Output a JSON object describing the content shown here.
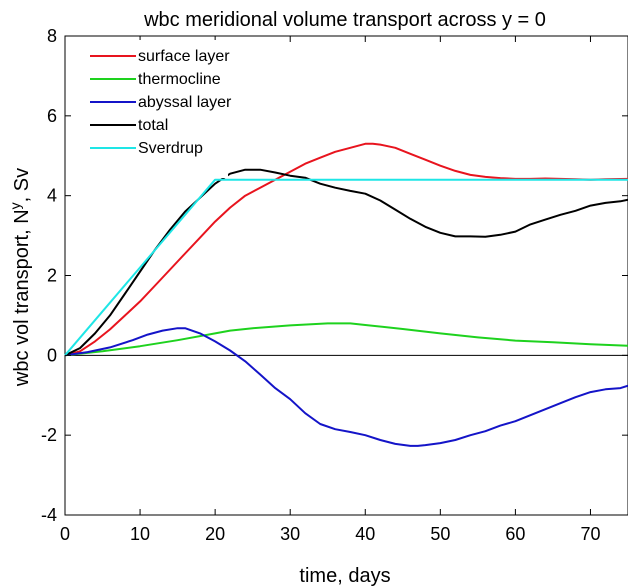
{
  "chart_data": {
    "type": "line",
    "title": "wbc meridional  volume transport across y = 0",
    "xlabel": "time, days",
    "ylabel": "wbc vol transport, N",
    "ylabel_superscript": "y",
    "ylabel_suffix": ", Sv",
    "xlim": [
      0,
      75
    ],
    "ylim": [
      -4,
      8
    ],
    "xticks": [
      0,
      10,
      20,
      30,
      40,
      50,
      60,
      70
    ],
    "yticks": [
      -4,
      -2,
      0,
      2,
      4,
      6,
      8
    ],
    "legend_position": "top-left",
    "zero_line": true,
    "grid": false,
    "series": [
      {
        "name": "surface layer",
        "color": "#e8141e",
        "x": [
          0,
          2,
          4,
          6,
          8,
          10,
          12,
          14,
          16,
          18,
          20,
          22,
          24,
          26,
          28,
          30,
          32,
          34,
          36,
          38,
          40,
          41,
          42,
          44,
          46,
          48,
          50,
          52,
          54,
          56,
          58,
          60,
          62,
          64,
          66,
          68,
          70,
          72,
          75
        ],
        "y": [
          0,
          0.1,
          0.35,
          0.65,
          1.0,
          1.35,
          1.75,
          2.15,
          2.55,
          2.95,
          3.35,
          3.7,
          4.0,
          4.2,
          4.4,
          4.6,
          4.8,
          4.95,
          5.1,
          5.2,
          5.3,
          5.3,
          5.28,
          5.2,
          5.05,
          4.9,
          4.75,
          4.62,
          4.52,
          4.47,
          4.44,
          4.42,
          4.42,
          4.43,
          4.42,
          4.41,
          4.4,
          4.41,
          4.42
        ]
      },
      {
        "name": "thermocline",
        "color": "#1ed21e",
        "x": [
          0,
          5,
          10,
          15,
          20,
          22,
          25,
          30,
          35,
          38,
          40,
          45,
          50,
          55,
          60,
          65,
          70,
          75
        ],
        "y": [
          0,
          0.1,
          0.23,
          0.38,
          0.55,
          0.62,
          0.68,
          0.75,
          0.8,
          0.8,
          0.76,
          0.66,
          0.55,
          0.45,
          0.37,
          0.33,
          0.28,
          0.24
        ]
      },
      {
        "name": "abyssal layer",
        "color": "#1414c8",
        "x": [
          0,
          3,
          6,
          9,
          11,
          13,
          15,
          16,
          18,
          20,
          22,
          24,
          26,
          28,
          30,
          32,
          34,
          36,
          38,
          40,
          42,
          44,
          46,
          47,
          48,
          50,
          52,
          54,
          56,
          58,
          60,
          62,
          64,
          66,
          68,
          70,
          72,
          74,
          75
        ],
        "y": [
          0,
          0.08,
          0.2,
          0.38,
          0.52,
          0.62,
          0.68,
          0.68,
          0.55,
          0.35,
          0.12,
          -0.15,
          -0.48,
          -0.82,
          -1.1,
          -1.45,
          -1.72,
          -1.85,
          -1.92,
          -2.0,
          -2.12,
          -2.22,
          -2.27,
          -2.27,
          -2.25,
          -2.2,
          -2.12,
          -2.0,
          -1.9,
          -1.76,
          -1.65,
          -1.5,
          -1.35,
          -1.2,
          -1.05,
          -0.92,
          -0.85,
          -0.82,
          -0.76
        ]
      },
      {
        "name": "total",
        "color": "#000000",
        "x": [
          0,
          2,
          4,
          6,
          8,
          10,
          12,
          14,
          16,
          18,
          20,
          22,
          24,
          26,
          28,
          30,
          32,
          34,
          36,
          38,
          40,
          42,
          44,
          46,
          48,
          50,
          52,
          54,
          56,
          58,
          60,
          62,
          64,
          66,
          68,
          70,
          72,
          74,
          75
        ],
        "y": [
          0,
          0.18,
          0.55,
          1.0,
          1.55,
          2.1,
          2.65,
          3.15,
          3.6,
          3.95,
          4.3,
          4.55,
          4.65,
          4.65,
          4.58,
          4.5,
          4.45,
          4.3,
          4.2,
          4.12,
          4.05,
          3.88,
          3.65,
          3.42,
          3.22,
          3.07,
          2.98,
          2.98,
          2.97,
          3.02,
          3.1,
          3.28,
          3.4,
          3.52,
          3.62,
          3.75,
          3.82,
          3.86,
          3.9
        ]
      },
      {
        "name": "Sverdrup",
        "color": "#1ee6e6",
        "x": [
          0,
          20,
          75
        ],
        "y": [
          0,
          4.4,
          4.4
        ]
      }
    ]
  }
}
